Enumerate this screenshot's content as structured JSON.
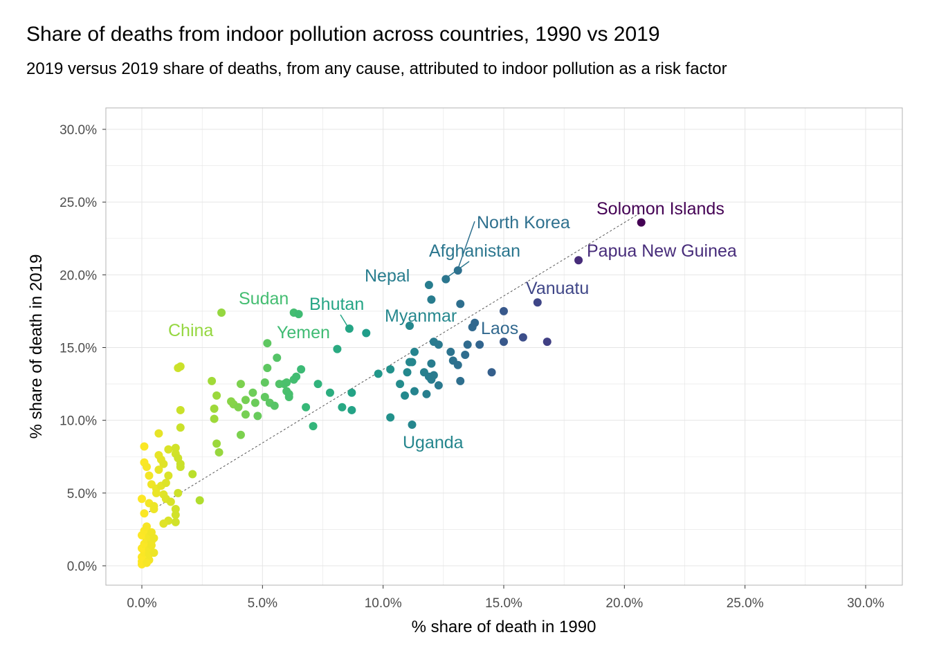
{
  "title": "Share of deaths from indoor pollution across countries, 1990 vs 2019",
  "subtitle": "2019 versus 2019 share of deaths, from any cause, attributed to indoor pollution as a risk factor",
  "chart_data": {
    "type": "scatter",
    "xlabel": "% share of death in 1990",
    "ylabel": "% share of death in 2019",
    "xlim": [
      -1.5,
      31.5
    ],
    "ylim": [
      -1.5,
      31.5
    ],
    "x_ticks": [
      0,
      5,
      10,
      15,
      20,
      25,
      30
    ],
    "y_ticks": [
      0,
      5,
      10,
      15,
      20,
      25,
      30
    ],
    "x_tick_labels": [
      "0.0%",
      "5.0%",
      "10.0%",
      "15.0%",
      "20.0%",
      "25.0%",
      "30.0%"
    ],
    "y_tick_labels": [
      "0.0%",
      "5.0%",
      "10.0%",
      "15.0%",
      "20.0%",
      "25.0%",
      "30.0%"
    ],
    "grid": true,
    "reference_line": {
      "style": "dashed",
      "x": [
        0,
        20.7
      ],
      "y": [
        3.4,
        24.3
      ]
    },
    "color_scale": "viridis (reversed): low 1990 share = yellow, high = purple",
    "points": [
      [
        0.0,
        0.1
      ],
      [
        0.0,
        0.3
      ],
      [
        0.0,
        0.6
      ],
      [
        0.1,
        0.9
      ],
      [
        0.0,
        1.2
      ],
      [
        0.1,
        1.5
      ],
      [
        0.2,
        1.8
      ],
      [
        0.0,
        2.1
      ],
      [
        0.1,
        2.4
      ],
      [
        0.2,
        2.7
      ],
      [
        0.3,
        0.4
      ],
      [
        0.3,
        0.8
      ],
      [
        0.3,
        1.1
      ],
      [
        0.4,
        1.4
      ],
      [
        0.4,
        1.7
      ],
      [
        0.3,
        2.0
      ],
      [
        0.4,
        2.3
      ],
      [
        0.5,
        0.9
      ],
      [
        0.5,
        1.9
      ],
      [
        0.2,
        0.2
      ],
      [
        0.1,
        3.6
      ],
      [
        0.0,
        4.6
      ],
      [
        0.1,
        7.1
      ],
      [
        0.1,
        8.2
      ],
      [
        0.2,
        6.8
      ],
      [
        0.3,
        6.2
      ],
      [
        0.4,
        5.6
      ],
      [
        0.3,
        4.3
      ],
      [
        0.5,
        4.1
      ],
      [
        0.6,
        5.3
      ],
      [
        0.7,
        9.1
      ],
      [
        0.7,
        7.6
      ],
      [
        0.8,
        7.3
      ],
      [
        0.9,
        7.0
      ],
      [
        0.7,
        6.6
      ],
      [
        0.8,
        5.5
      ],
      [
        0.9,
        4.9
      ],
      [
        1.0,
        4.6
      ],
      [
        1.1,
        6.2
      ],
      [
        1.0,
        5.7
      ],
      [
        1.1,
        8.0
      ],
      [
        1.2,
        4.4
      ],
      [
        1.1,
        3.1
      ],
      [
        0.9,
        2.9
      ],
      [
        0.5,
        3.9
      ],
      [
        0.6,
        5.0
      ],
      [
        1.4,
        8.1
      ],
      [
        1.4,
        7.7
      ],
      [
        1.5,
        7.4
      ],
      [
        1.6,
        7.0
      ],
      [
        1.6,
        6.8
      ],
      [
        1.4,
        3.9
      ],
      [
        1.4,
        3.5
      ],
      [
        1.4,
        3.0
      ],
      [
        1.5,
        5.0
      ],
      [
        1.5,
        13.6
      ],
      [
        1.6,
        13.7
      ],
      [
        1.6,
        10.7
      ],
      [
        1.6,
        9.5
      ],
      [
        2.1,
        6.3
      ],
      [
        2.4,
        4.5
      ],
      [
        3.3,
        17.4
      ],
      [
        2.9,
        12.7
      ],
      [
        3.1,
        11.7
      ],
      [
        3.0,
        10.8
      ],
      [
        3.0,
        10.1
      ],
      [
        3.1,
        8.4
      ],
      [
        3.2,
        7.8
      ],
      [
        3.7,
        11.3
      ],
      [
        3.8,
        11.1
      ],
      [
        4.0,
        10.9
      ],
      [
        4.1,
        12.5
      ],
      [
        4.1,
        9.0
      ],
      [
        4.3,
        11.4
      ],
      [
        4.3,
        10.4
      ],
      [
        4.6,
        11.9
      ],
      [
        4.7,
        11.2
      ],
      [
        4.8,
        10.3
      ],
      [
        5.1,
        12.6
      ],
      [
        5.1,
        11.6
      ],
      [
        5.2,
        15.3
      ],
      [
        5.2,
        13.6
      ],
      [
        5.3,
        11.2
      ],
      [
        5.5,
        11.0
      ],
      [
        5.6,
        14.3
      ],
      [
        5.7,
        12.5
      ],
      [
        5.9,
        12.5
      ],
      [
        6.0,
        12.0
      ],
      [
        6.0,
        12.6
      ],
      [
        6.1,
        11.8
      ],
      [
        6.1,
        11.6
      ],
      [
        6.3,
        12.8
      ],
      [
        6.4,
        13.0
      ],
      [
        6.3,
        17.4
      ],
      [
        6.5,
        17.3
      ],
      [
        6.6,
        13.5
      ],
      [
        6.8,
        10.9
      ],
      [
        7.1,
        9.6
      ],
      [
        7.3,
        12.5
      ],
      [
        7.8,
        11.9
      ],
      [
        8.1,
        14.9
      ],
      [
        8.3,
        10.9
      ],
      [
        8.6,
        16.3
      ],
      [
        8.7,
        11.9
      ],
      [
        8.7,
        10.7
      ],
      [
        9.3,
        16.0
      ],
      [
        9.8,
        13.2
      ],
      [
        10.3,
        13.5
      ],
      [
        10.3,
        10.2
      ],
      [
        10.7,
        12.5
      ],
      [
        10.9,
        11.7
      ],
      [
        11.0,
        13.3
      ],
      [
        11.1,
        16.5
      ],
      [
        11.1,
        14.0
      ],
      [
        11.2,
        14.0
      ],
      [
        11.2,
        9.7
      ],
      [
        11.3,
        14.7
      ],
      [
        11.3,
        12.0
      ],
      [
        11.7,
        13.3
      ],
      [
        11.8,
        11.8
      ],
      [
        11.9,
        19.3
      ],
      [
        11.9,
        13.0
      ],
      [
        12.0,
        18.3
      ],
      [
        12.0,
        13.9
      ],
      [
        12.0,
        12.8
      ],
      [
        12.1,
        15.4
      ],
      [
        12.1,
        13.1
      ],
      [
        12.3,
        15.2
      ],
      [
        12.3,
        12.4
      ],
      [
        12.6,
        19.7
      ],
      [
        12.8,
        14.7
      ],
      [
        12.9,
        14.1
      ],
      [
        13.1,
        20.3
      ],
      [
        13.1,
        13.8
      ],
      [
        13.2,
        18.0
      ],
      [
        13.2,
        12.7
      ],
      [
        13.4,
        14.5
      ],
      [
        13.5,
        15.2
      ],
      [
        13.7,
        16.4
      ],
      [
        13.8,
        16.7
      ],
      [
        14.0,
        15.2
      ],
      [
        14.5,
        13.3
      ],
      [
        15.0,
        17.5
      ],
      [
        15.0,
        15.4
      ],
      [
        15.8,
        15.7
      ],
      [
        16.4,
        18.1
      ],
      [
        16.8,
        15.4
      ],
      [
        18.1,
        21.0
      ],
      [
        20.7,
        23.6
      ]
    ],
    "labels": [
      {
        "text": "Solomon Islands",
        "x": 20.7,
        "y": 23.6
      },
      {
        "text": "North Korea",
        "x": 13.1,
        "y": 20.3
      },
      {
        "text": "Papua New Guinea",
        "x": 18.1,
        "y": 21.0
      },
      {
        "text": "Afghanistan",
        "x": 12.6,
        "y": 19.7
      },
      {
        "text": "Nepal",
        "x": 11.9,
        "y": 19.3
      },
      {
        "text": "Vanuatu",
        "x": 16.4,
        "y": 18.1
      },
      {
        "text": "Sudan",
        "x": 6.3,
        "y": 17.4
      },
      {
        "text": "Bhutan",
        "x": 8.6,
        "y": 16.3
      },
      {
        "text": "Myanmar",
        "x": 11.1,
        "y": 16.5
      },
      {
        "text": "China",
        "x": 3.3,
        "y": 17.4
      },
      {
        "text": "Yemen",
        "x": 6.5,
        "y": 17.3
      },
      {
        "text": "Laos",
        "x": 13.8,
        "y": 16.7
      },
      {
        "text": "Uganda",
        "x": 11.2,
        "y": 9.7
      }
    ]
  },
  "colors": {
    "grid": "#ebebeb",
    "panel_border": "#b3b3b3",
    "reference_line": "#555555"
  }
}
